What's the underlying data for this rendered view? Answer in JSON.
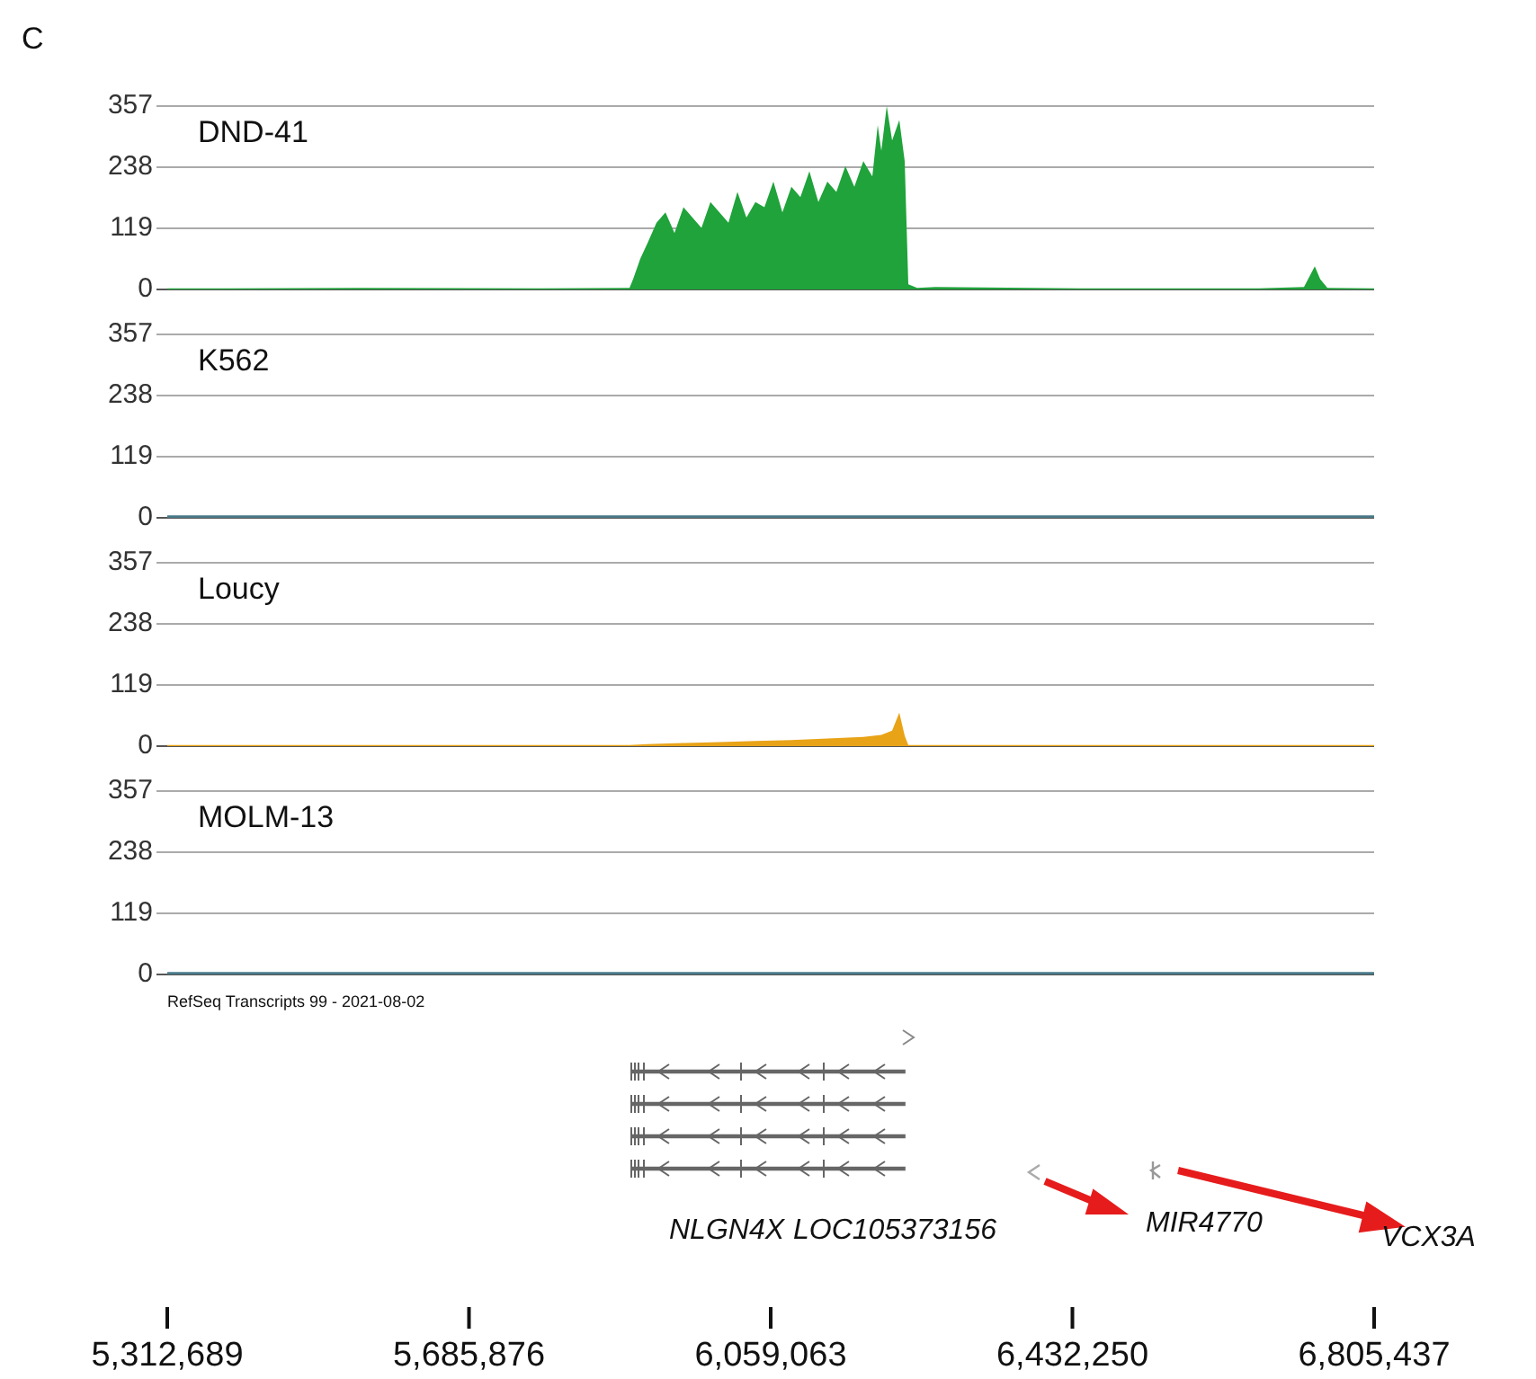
{
  "chart_data": [
    {
      "type": "area",
      "title": "DND-41",
      "annotations": [
        "C"
      ],
      "xlim": [
        5312689,
        6805437
      ],
      "ylim": [
        0,
        357
      ],
      "yticks": [
        0,
        119,
        238,
        357
      ],
      "grid": "y",
      "tick_labels": "y",
      "series": [
        {
          "color": "#1fa33a",
          "x": [
            5312689,
            5550732,
            5773202,
            5884437,
            5888886,
            5897785,
            5906684,
            5917807,
            5928931,
            5940054,
            5951178,
            5962301,
            5973425,
            5984548,
            5995672,
            6006795,
            6017919,
            6029042,
            6040166,
            6051289,
            6062413,
            6073536,
            6084660,
            6095783,
            6106907,
            6118030,
            6129154,
            6140277,
            6151401,
            6162524,
            6173648,
            6184771,
            6191446,
            6195895,
            6202569,
            6209243,
            6218142,
            6224816,
            6229265,
            6240389,
            6262636,
            6440612,
            6663082,
            6718699,
            6725374,
            6732048,
            6738722,
            6747621,
            6805437
          ],
          "values": [
            2,
            3,
            2,
            3,
            20,
            60,
            90,
            130,
            150,
            110,
            160,
            140,
            120,
            170,
            150,
            130,
            190,
            140,
            170,
            160,
            210,
            150,
            200,
            180,
            230,
            170,
            210,
            190,
            240,
            200,
            250,
            220,
            320,
            270,
            357,
            290,
            330,
            250,
            10,
            3,
            5,
            2,
            2,
            5,
            25,
            45,
            20,
            3,
            2
          ]
        }
      ]
    },
    {
      "type": "area",
      "title": "K562",
      "xlim": [
        5312689,
        6805437
      ],
      "ylim": [
        0,
        357
      ],
      "yticks": [
        0,
        119,
        238,
        357
      ],
      "grid": "y",
      "tick_labels": "y",
      "series": [
        {
          "color": "#4a7a8a",
          "x": [
            5312689,
            6805437
          ],
          "values": [
            5,
            5
          ]
        }
      ]
    },
    {
      "type": "area",
      "title": "Loucy",
      "xlim": [
        5312689,
        6805437
      ],
      "ylim": [
        0,
        357
      ],
      "yticks": [
        0,
        119,
        238,
        357
      ],
      "grid": "y",
      "tick_labels": "y",
      "series": [
        {
          "color": "#e8a317",
          "x": [
            5312689,
            5884437,
            5906684,
            5951178,
            5995672,
            6040166,
            6084660,
            6129154,
            6173648,
            6195895,
            6209243,
            6218142,
            6224816,
            6229265,
            6805437
          ],
          "values": [
            2,
            2,
            4,
            6,
            8,
            10,
            12,
            15,
            18,
            22,
            30,
            65,
            20,
            2,
            2
          ]
        }
      ]
    },
    {
      "type": "area",
      "title": "MOLM-13",
      "xlim": [
        5312689,
        6805437
      ],
      "ylim": [
        0,
        357
      ],
      "yticks": [
        0,
        119,
        238,
        357
      ],
      "grid": "y",
      "tick_labels": "y",
      "series": [
        {
          "color": "#4a7a8a",
          "x": [
            5312689,
            6805437
          ],
          "values": [
            5,
            5
          ]
        }
      ]
    },
    {
      "type": "bar",
      "orientation": "horizontal",
      "title": "RefSeq Transcripts 99 - 2021-08-02",
      "annotations": [
        "NLGN4X",
        "LOC105373156",
        "MIR4770",
        "VCX3A"
      ],
      "categories": [
        null,
        null,
        null,
        null
      ],
      "base": [
        5887000,
        5887000,
        5887000,
        5887000
      ],
      "values": [
        338000,
        338000,
        338000,
        338000
      ],
      "color": "#666666",
      "xlim": [
        5312689,
        6805437
      ],
      "tick_labels": "x",
      "xticks": [
        {
          "value": 5312689,
          "label": "5,312,689"
        },
        {
          "value": 5685876,
          "label": "5,685,876"
        },
        {
          "value": 6059063,
          "label": "6,059,063"
        },
        {
          "value": 6432250,
          "label": "6,432,250"
        },
        {
          "value": 6805437,
          "label": "6,805,437"
        }
      ]
    }
  ]
}
